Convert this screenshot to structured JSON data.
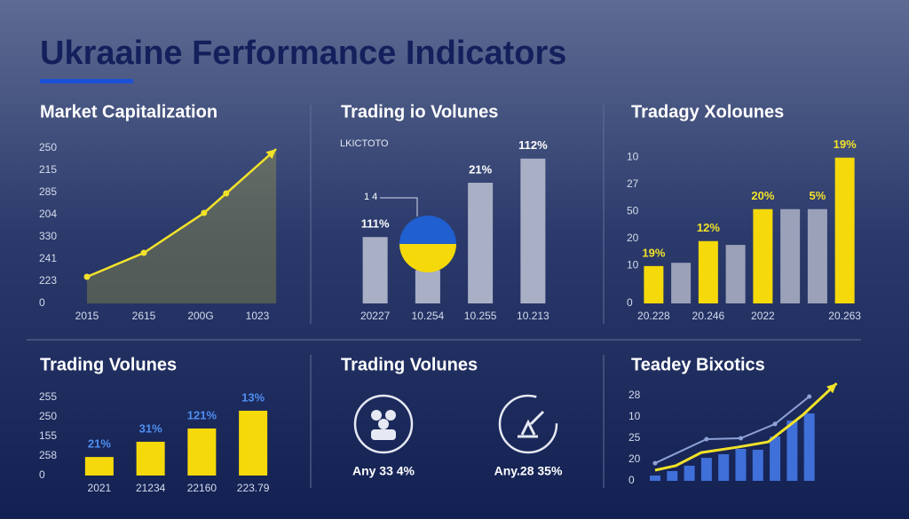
{
  "title": "Ukraaine Ferformance Indicators",
  "chart_data": [
    {
      "type": "line",
      "title": "Market Capitalization",
      "x": [
        0,
        1,
        2.06,
        2.45,
        3.33
      ],
      "values": [
        1.2,
        2.28,
        4.08,
        4.96,
        6.96
      ],
      "color": "#f2e22a",
      "xlim": [
        0,
        3.4
      ],
      "xticks": [
        {
          "value": 0,
          "label": "2015"
        },
        {
          "value": 1,
          "label": "2615"
        },
        {
          "value": 2,
          "label": "200G"
        },
        {
          "value": 3,
          "label": "1023"
        }
      ],
      "ylim": [
        0,
        7
      ],
      "yticks": [
        0,
        {
          "value": 1,
          "label": "223"
        },
        {
          "value": 2,
          "label": "241"
        },
        {
          "value": 3,
          "label": "330"
        },
        {
          "value": 4,
          "label": "204"
        },
        {
          "value": 5,
          "label": "285"
        },
        {
          "value": 6,
          "label": "215"
        },
        {
          "value": 7,
          "label": "250"
        }
      ]
    },
    {
      "type": "bar",
      "title": "Trading io Volunes",
      "subtitle": "LKICTOTO",
      "annotation": "1 4",
      "categories": [
        "20227",
        "10.254",
        "10.255",
        "10.213"
      ],
      "values": [
        44,
        22,
        80,
        96
      ],
      "labels": [
        "111%",
        null,
        "21%",
        "112%"
      ],
      "label_color": "#ffffff",
      "color": "#a9b0c6",
      "ylim": [
        0,
        100
      ]
    },
    {
      "type": "bar",
      "title": "Tradagy Xolounes",
      "categories": [
        "20.228",
        null,
        "20.246",
        null,
        "2022",
        null,
        null,
        "20.263"
      ],
      "values": [
        1.38,
        1.5,
        2.3,
        2.16,
        3.48,
        3.48,
        3.48,
        5.38
      ],
      "colors": [
        "#f5d90a",
        "#9aa1b8",
        "#f5d90a",
        "#9aa1b8",
        "#f5d90a",
        "#9aa1b8",
        "#9aa1b8",
        "#f5d90a"
      ],
      "labels": [
        "19%",
        null,
        "12%",
        null,
        "20%",
        null,
        "5%",
        "19%"
      ],
      "label_color": "#f2e22a",
      "ylim": [
        0,
        5.6
      ],
      "yticks": [
        0,
        {
          "value": 1.4,
          "label": "10"
        },
        {
          "value": 2.4,
          "label": "20"
        },
        {
          "value": 3.4,
          "label": "50"
        },
        {
          "value": 4.4,
          "label": "27"
        },
        {
          "value": 5.4,
          "label": "10"
        }
      ]
    },
    {
      "type": "bar",
      "title": "Trading Volunes",
      "categories": [
        "2021",
        "21234",
        "22160",
        "223.79"
      ],
      "values": [
        0.95,
        1.73,
        2.41,
        3.32
      ],
      "labels": [
        "21%",
        "31%",
        "121%",
        "13%"
      ],
      "label_color": "#4f8ff0",
      "color": "#f5d90a",
      "ylim": [
        0,
        4.2
      ],
      "yticks": [
        0,
        {
          "value": 1,
          "label": "258"
        },
        {
          "value": 2,
          "label": "155"
        },
        {
          "value": 3,
          "label": "250"
        },
        {
          "value": 4,
          "label": "255"
        }
      ]
    },
    {
      "type": "kpi",
      "title": "Trading Volunes",
      "items": [
        "Any 33 4%",
        "Any.28 35%"
      ]
    },
    {
      "type": "combo",
      "title": "Teadey Bixotics",
      "values": [
        0.25,
        0.46,
        0.71,
        1.08,
        1.25,
        1.5,
        1.46,
        2.08,
        2.83,
        3.17
      ],
      "color": "#3f6fd8",
      "series": [
        {
          "x": [
            0,
            3,
            5,
            7,
            9
          ],
          "values": [
            0.83,
            1.96,
            2.0,
            2.67,
            3.96
          ],
          "color": "#8ea2d8"
        },
        {
          "x": [
            0,
            1.2,
            2.7,
            4.8,
            6.6,
            8.6,
            10.6
          ],
          "values": [
            0.5,
            0.71,
            1.33,
            1.58,
            1.83,
            3.08,
            4.58
          ],
          "color": "#f2e22a"
        }
      ],
      "xlim": [
        -0.5,
        10.8
      ],
      "ylim": [
        0,
        5
      ],
      "yticks": [
        0,
        {
          "value": 1,
          "label": "20"
        },
        {
          "value": 2,
          "label": "25"
        },
        {
          "value": 3,
          "label": "10"
        },
        {
          "value": 4,
          "label": "28"
        }
      ]
    }
  ]
}
